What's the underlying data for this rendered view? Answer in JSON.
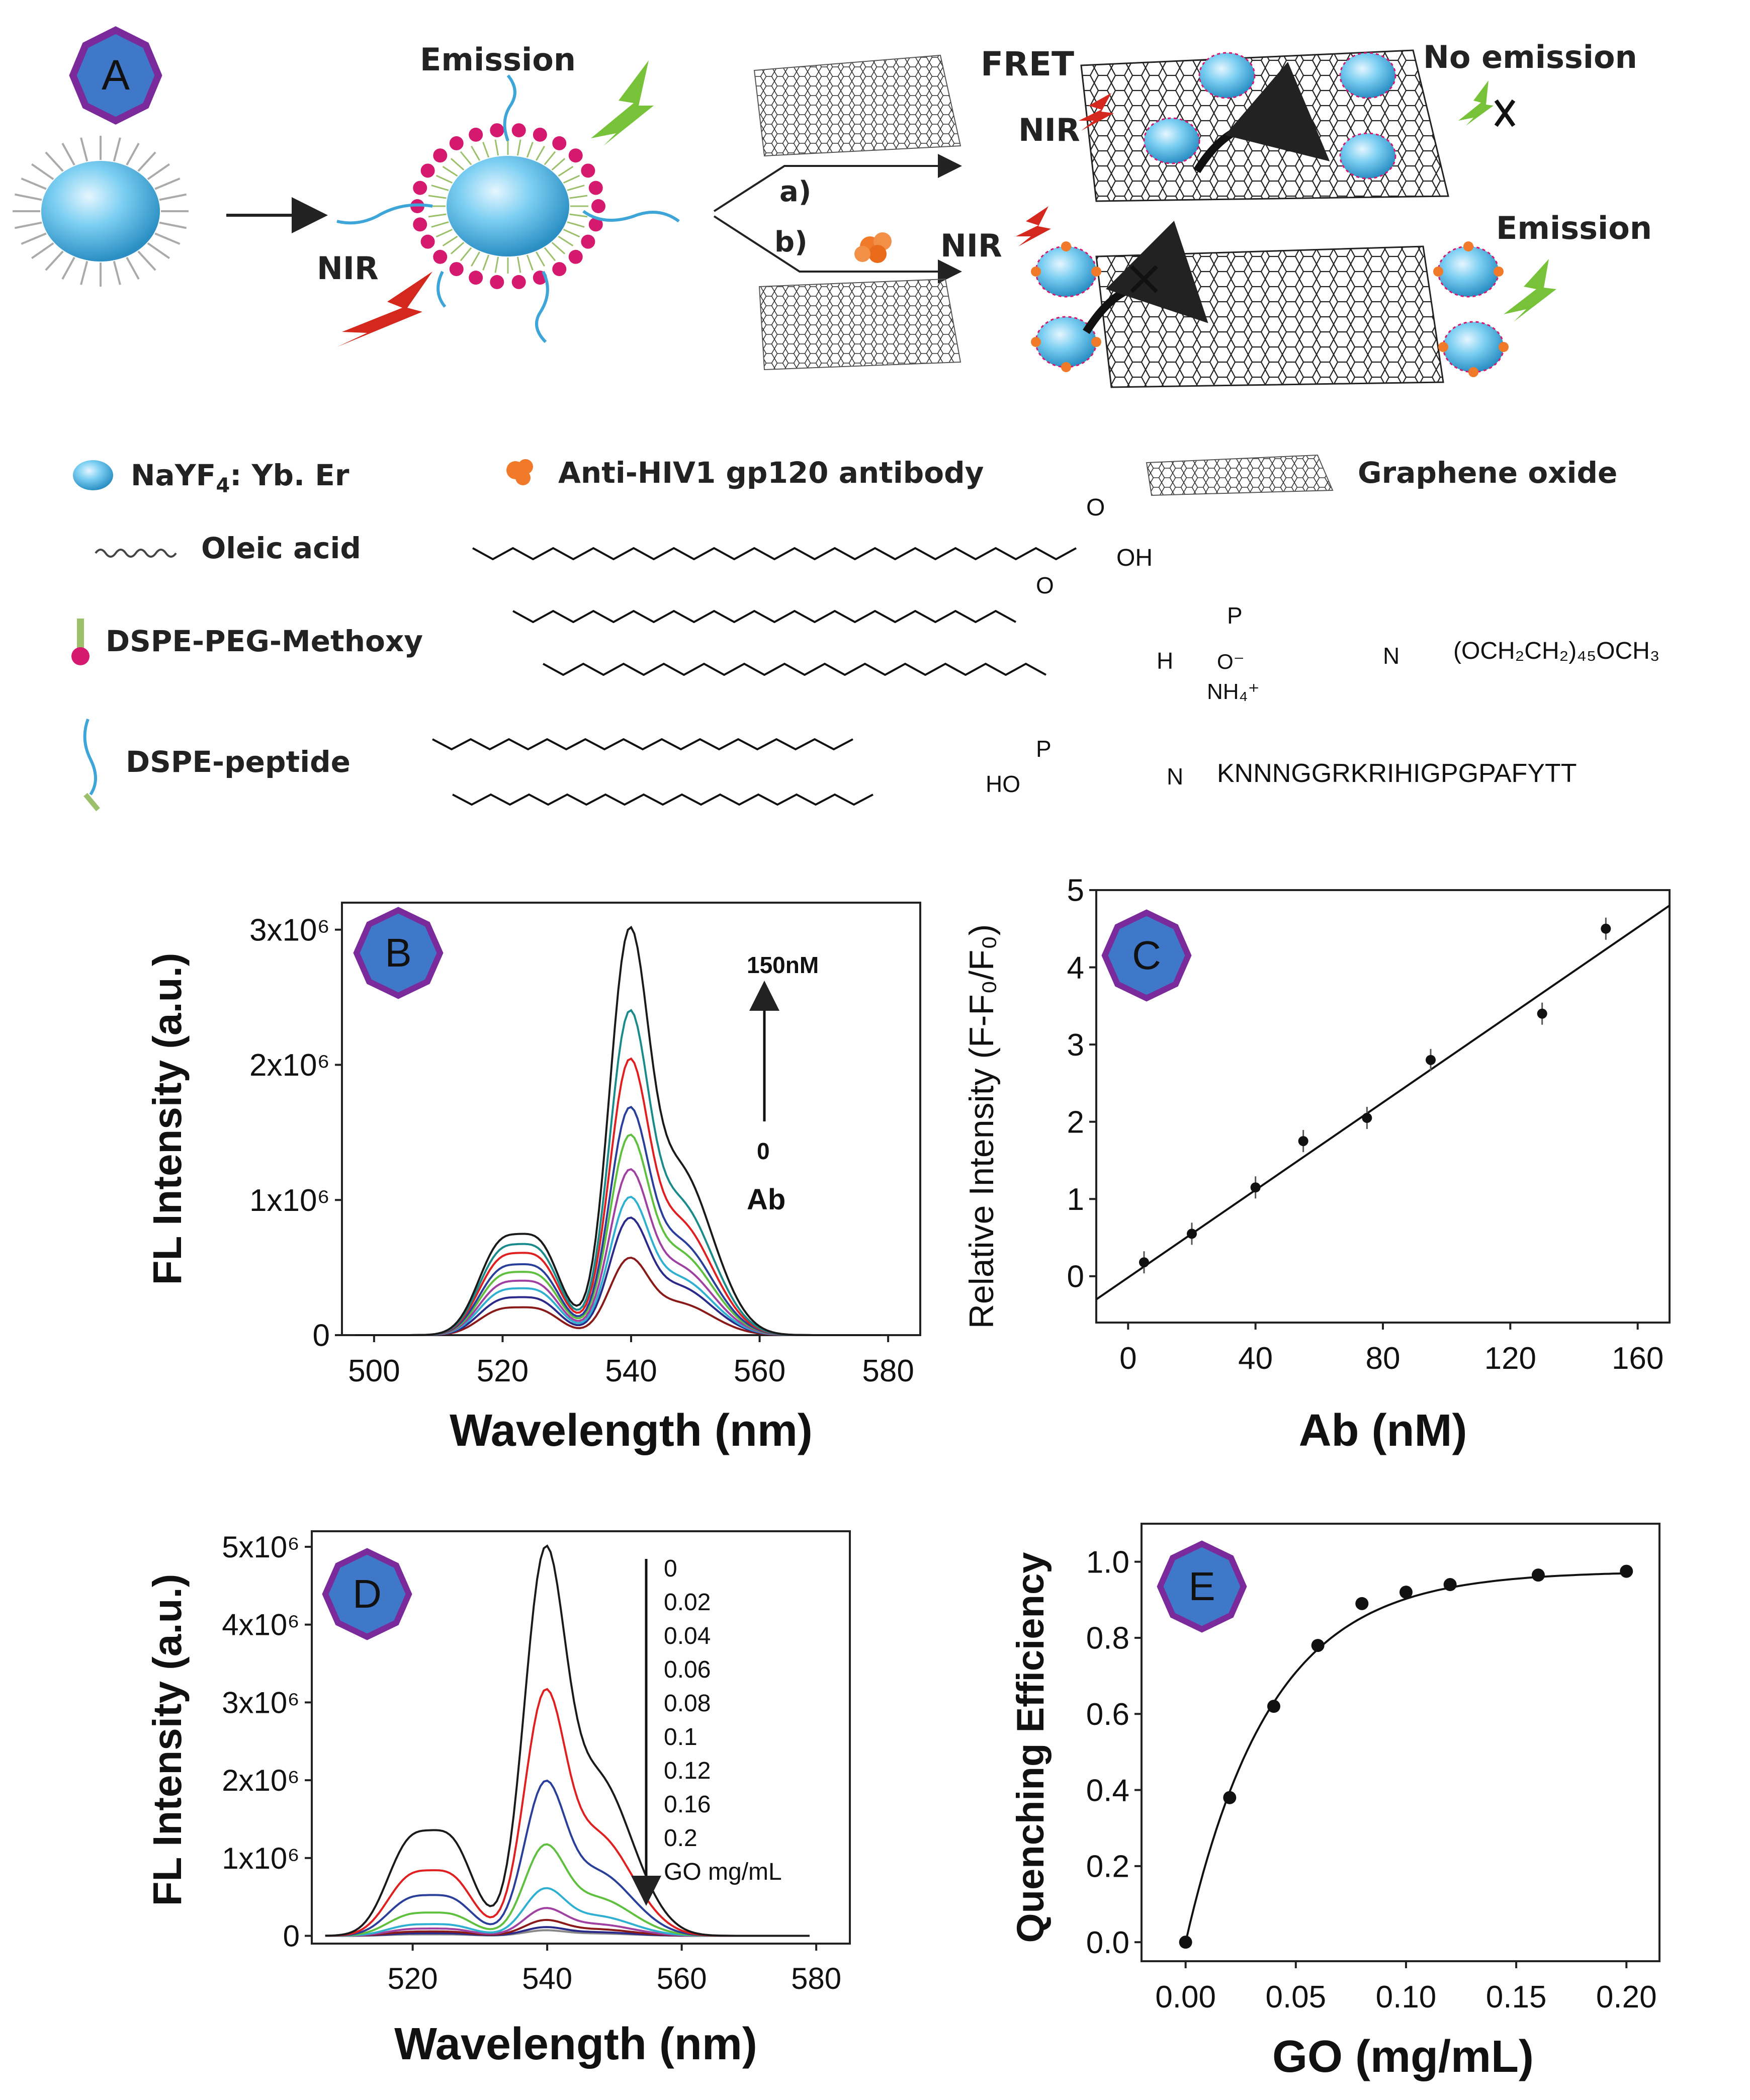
{
  "panel_labels": [
    "A",
    "B",
    "C",
    "D",
    "E"
  ],
  "scheme": {
    "emission_top": "Emission",
    "nir_left": "NIR",
    "fret": "FRET",
    "no_emission": "No  emission",
    "nir_top": "NIR",
    "branch_a": "a)",
    "branch_b": "b)",
    "nir_bottom": "NIR",
    "emission_right": "Emission",
    "legend": {
      "nayf4": "NaYF",
      "nayf4_sub": "4",
      "nayf4_rest": ": Yb.  Er",
      "antibody": "Anti-HIV1 gp120 antibody",
      "graphene": "Graphene oxide",
      "oleic": "Oleic  acid",
      "dspe_peg": "DSPE-PEG-Methoxy",
      "dspe_peptide": "DSPE-peptide"
    },
    "chem": {
      "oh": "OH",
      "peg_chain": "(OCH₂CH₂)₄₅OCH₃",
      "nh4": "NH₄⁺",
      "peptide": "KNNNGGRKRIHIGPGPAFYTT",
      "o": "O",
      "p": "P",
      "h": "H",
      "n": "N",
      "ho": "HO",
      "ominus": "O⁻"
    }
  },
  "colors": {
    "badge_fill": "#3f78c8",
    "badge_border": "#7a2a9a",
    "nanoparticle": "#5bbde8",
    "peg_dot": "#d4196f",
    "nir_red": "#d4281e",
    "emission_green": "#78c23a",
    "antibody_orange": "#f07a2a",
    "peptide_blue": "#3ea5d8"
  },
  "chart_data": [
    {
      "panel": "B",
      "type": "line",
      "xlabel": "Wavelength (nm)",
      "ylabel": "FL Intensity (a.u.)",
      "xlim": [
        495,
        585
      ],
      "ylim": [
        0,
        3200000
      ],
      "xticks": [
        "500",
        "520",
        "540",
        "560",
        "580"
      ],
      "yticks": [
        "0",
        "1x10⁶",
        "2x10⁶",
        "3x10⁶"
      ],
      "annotation_top": "150nM",
      "annotation_bottom": "0",
      "annotation_unit": "Ab",
      "series_peaks": [
        {
          "color": "#1a1a1a",
          "peak520": 800000,
          "peak540": 2950000
        },
        {
          "color": "#1a8a8a",
          "peak520": 720000,
          "peak540": 2350000
        },
        {
          "color": "#e02020",
          "peak520": 650000,
          "peak540": 2000000
        },
        {
          "color": "#2a3f9a",
          "peak520": 560000,
          "peak540": 1650000
        },
        {
          "color": "#5fbf3f",
          "peak520": 500000,
          "peak540": 1450000
        },
        {
          "color": "#a040a0",
          "peak520": 430000,
          "peak540": 1200000
        },
        {
          "color": "#30b0d0",
          "peak520": 370000,
          "peak540": 1000000
        },
        {
          "color": "#2a2a8a",
          "peak520": 300000,
          "peak540": 850000
        },
        {
          "color": "#8a1a1a",
          "peak520": 220000,
          "peak540": 560000
        }
      ]
    },
    {
      "panel": "C",
      "type": "scatter",
      "xlabel": "Ab (nM)",
      "ylabel": "Relative Intensity (F-F₀/F₀)",
      "xlim": [
        -10,
        170
      ],
      "ylim": [
        -0.6,
        5
      ],
      "xticks": [
        "0",
        "40",
        "80",
        "120",
        "160"
      ],
      "yticks": [
        "0",
        "1",
        "2",
        "3",
        "4",
        "5"
      ],
      "x": [
        5,
        20,
        40,
        55,
        75,
        95,
        130,
        150
      ],
      "y": [
        0.18,
        0.55,
        1.15,
        1.75,
        2.05,
        2.8,
        3.4,
        4.5
      ],
      "fit_line": {
        "x": [
          -10,
          170
        ],
        "y": [
          -0.3,
          4.8
        ]
      }
    },
    {
      "panel": "D",
      "type": "line",
      "xlabel": "Wavelength (nm)",
      "ylabel": "FL  Intensity (a.u.)",
      "xlim": [
        505,
        585
      ],
      "ylim": [
        -100000,
        5200000
      ],
      "xticks": [
        "520",
        "540",
        "560",
        "580"
      ],
      "yticks": [
        "0",
        "1x10⁶",
        "2x10⁶",
        "3x10⁶",
        "4x10⁶",
        "5x10⁶"
      ],
      "legend_values": [
        "0",
        "0.02",
        "0.04",
        "0.06",
        "0.08",
        "0.1",
        "0.12",
        "0.16",
        "0.2"
      ],
      "legend_unit": "GO mg/mL",
      "series_peaks": [
        {
          "color": "#1a1a1a",
          "peak520": 1450000,
          "peak540": 4900000
        },
        {
          "color": "#e02020",
          "peak520": 900000,
          "peak540": 3100000
        },
        {
          "color": "#2a3f9a",
          "peak520": 560000,
          "peak540": 1950000
        },
        {
          "color": "#5fbf3f",
          "peak520": 320000,
          "peak540": 1150000
        },
        {
          "color": "#30b0d0",
          "peak520": 160000,
          "peak540": 600000
        },
        {
          "color": "#a040a0",
          "peak520": 100000,
          "peak540": 350000
        },
        {
          "color": "#8a1a1a",
          "peak520": 60000,
          "peak540": 200000
        },
        {
          "color": "#2a2a8a",
          "peak520": 35000,
          "peak540": 110000
        },
        {
          "color": "#888888",
          "peak520": 20000,
          "peak540": 70000
        }
      ]
    },
    {
      "panel": "E",
      "type": "scatter",
      "xlabel": "GO (mg/mL)",
      "ylabel": "Quenching Efficiency",
      "xlim": [
        -0.02,
        0.215
      ],
      "ylim": [
        -0.05,
        1.1
      ],
      "xticks": [
        "0.00",
        "0.05",
        "0.10",
        "0.15",
        "0.20"
      ],
      "yticks": [
        "0.0",
        "0.2",
        "0.4",
        "0.6",
        "0.8",
        "1.0"
      ],
      "x": [
        0,
        0.02,
        0.04,
        0.06,
        0.08,
        0.1,
        0.12,
        0.16,
        0.2
      ],
      "y": [
        0.0,
        0.38,
        0.62,
        0.78,
        0.89,
        0.92,
        0.94,
        0.965,
        0.975
      ],
      "fit_curve": {
        "model": "exponential rise",
        "ymax": 0.975,
        "k": 26
      }
    }
  ]
}
